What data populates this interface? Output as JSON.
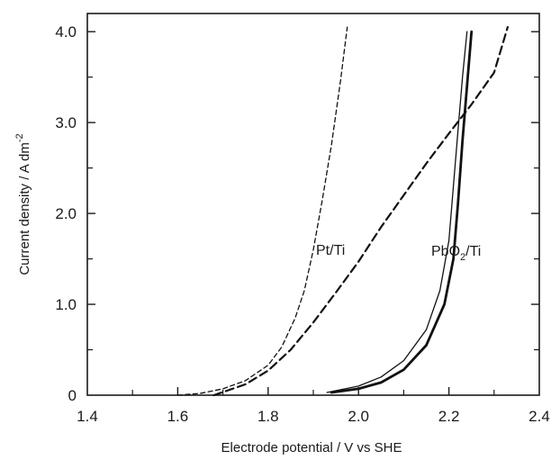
{
  "chart_data": {
    "type": "line",
    "title": "",
    "xlabel": "Electrode potential / V vs SHE",
    "ylabel_main": "Current density / A dm",
    "ylabel_sup": "-2",
    "xlim": [
      1.4,
      2.4
    ],
    "ylim": [
      0,
      4.2
    ],
    "x_ticks": [
      1.4,
      1.6,
      1.8,
      2.0,
      2.2,
      2.4
    ],
    "x_tick_labels": [
      "1.4",
      "1.6",
      "1.8",
      "2.0",
      "2.2",
      "2.4"
    ],
    "y_ticks": [
      0,
      1.0,
      2.0,
      3.0,
      4.0
    ],
    "y_tick_labels": [
      "0",
      "1.0",
      "2.0",
      "3.0",
      "4.0"
    ],
    "grid": false,
    "legend": "none",
    "annotations": {
      "pt": "Pt/Ti",
      "pbo2_main": "PbO",
      "pbo2_sub": "2",
      "pbo2_suffix": "/Ti"
    },
    "series": [
      {
        "style": "short-dash-thin",
        "x": [
          1.6,
          1.65,
          1.7,
          1.75,
          1.8,
          1.83,
          1.86,
          1.88,
          1.9,
          1.92,
          1.94,
          1.96,
          1.975
        ],
        "y": [
          0,
          0.02,
          0.07,
          0.16,
          0.33,
          0.53,
          0.85,
          1.15,
          1.6,
          2.15,
          2.75,
          3.45,
          4.05
        ]
      },
      {
        "style": "long-dash-thick",
        "x": [
          1.68,
          1.75,
          1.8,
          1.85,
          1.9,
          1.95,
          2.0,
          2.05,
          2.1,
          2.15,
          2.2,
          2.25,
          2.3,
          2.33
        ],
        "y": [
          0,
          0.12,
          0.27,
          0.5,
          0.8,
          1.13,
          1.47,
          1.85,
          2.2,
          2.55,
          2.88,
          3.2,
          3.55,
          4.05
        ]
      },
      {
        "style": "solid-thin",
        "x": [
          1.93,
          2.0,
          2.05,
          2.1,
          2.15,
          2.18,
          2.2,
          2.21,
          2.22,
          2.23,
          2.24
        ],
        "y": [
          0.03,
          0.1,
          0.2,
          0.38,
          0.72,
          1.15,
          1.7,
          2.3,
          2.9,
          3.5,
          4.0
        ]
      },
      {
        "style": "solid-thick",
        "x": [
          1.94,
          2.0,
          2.05,
          2.1,
          2.15,
          2.19,
          2.21,
          2.22,
          2.23,
          2.24,
          2.25
        ],
        "y": [
          0.03,
          0.07,
          0.14,
          0.28,
          0.55,
          1.0,
          1.5,
          2.1,
          2.8,
          3.4,
          4.0
        ]
      }
    ]
  }
}
